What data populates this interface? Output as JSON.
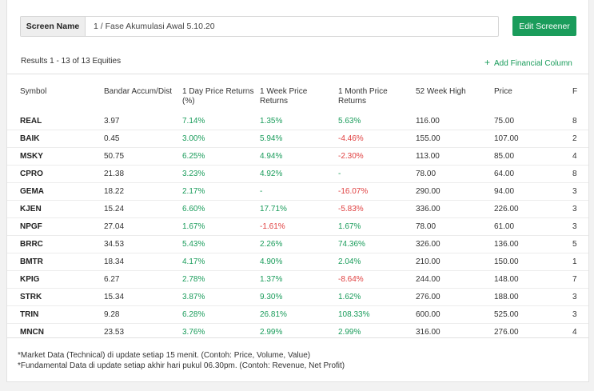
{
  "screen": {
    "label": "Screen Name",
    "value": "1 / Fase Akumulasi Awal 5.10.20",
    "edit_button": "Edit Screener"
  },
  "results_label": "Results 1 - 13 of 13 Equities",
  "add_column": {
    "icon": "plus-icon",
    "label": "Add Financial Column"
  },
  "colors": {
    "accent": "#1a9c5b",
    "negative": "#e04141"
  },
  "table": {
    "headers": [
      "Symbol",
      "Bandar Accum/Dist",
      "1 Day Price Returns (%)",
      "1 Week Price Returns",
      "1 Month Price Returns",
      "52 Week High",
      "Price",
      "F"
    ],
    "rows": [
      [
        "REAL",
        "3.97",
        "7.14%",
        "1.35%",
        "5.63%",
        "116.00",
        "75.00",
        "8"
      ],
      [
        "BAIK",
        "0.45",
        "3.00%",
        "5.94%",
        "-4.46%",
        "155.00",
        "107.00",
        "2"
      ],
      [
        "MSKY",
        "50.75",
        "6.25%",
        "4.94%",
        "-2.30%",
        "113.00",
        "85.00",
        "4"
      ],
      [
        "CPRO",
        "21.38",
        "3.23%",
        "4.92%",
        "-",
        "78.00",
        "64.00",
        "8"
      ],
      [
        "GEMA",
        "18.22",
        "2.17%",
        "-",
        "-16.07%",
        "290.00",
        "94.00",
        "3"
      ],
      [
        "KJEN",
        "15.24",
        "6.60%",
        "17.71%",
        "-5.83%",
        "336.00",
        "226.00",
        "3"
      ],
      [
        "NPGF",
        "27.04",
        "1.67%",
        "-1.61%",
        "1.67%",
        "78.00",
        "61.00",
        "3"
      ],
      [
        "BRRC",
        "34.53",
        "5.43%",
        "2.26%",
        "74.36%",
        "326.00",
        "136.00",
        "5"
      ],
      [
        "BMTR",
        "18.34",
        "4.17%",
        "4.90%",
        "2.04%",
        "210.00",
        "150.00",
        "1"
      ],
      [
        "KPIG",
        "6.27",
        "2.78%",
        "1.37%",
        "-8.64%",
        "244.00",
        "148.00",
        "7"
      ],
      [
        "STRK",
        "15.34",
        "3.87%",
        "9.30%",
        "1.62%",
        "276.00",
        "188.00",
        "3"
      ],
      [
        "TRIN",
        "9.28",
        "6.28%",
        "26.81%",
        "108.33%",
        "600.00",
        "525.00",
        "3"
      ],
      [
        "MNCN",
        "23.53",
        "3.76%",
        "2.99%",
        "2.99%",
        "316.00",
        "276.00",
        "4"
      ]
    ]
  },
  "notes": [
    "*Market Data (Technical) di update setiap 15 menit. (Contoh: Price, Volume, Value)",
    "*Fundamental Data di update setiap akhir hari pukul 06.30pm. (Contoh: Revenue, Net Profit)"
  ]
}
